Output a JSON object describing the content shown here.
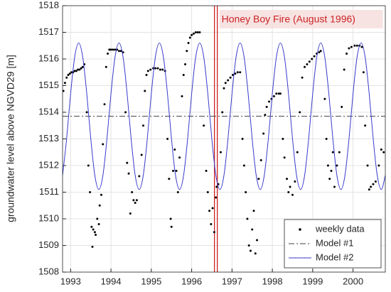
{
  "chart_data": {
    "type": "line",
    "ylabel": "groundwater level above NGVD29 [m]",
    "xlim": [
      1992.8,
      2000.8
    ],
    "xticks": [
      1993,
      1994,
      1995,
      1996,
      1997,
      1998,
      1999,
      2000
    ],
    "ylim": [
      1508,
      1518
    ],
    "yticks": [
      1508,
      1509,
      1510,
      1511,
      1512,
      1513,
      1514,
      1515,
      1516,
      1517,
      1518
    ],
    "grid": true,
    "legend": "southeast",
    "annotations": [
      {
        "text": "Honey Boy Fire (August 1996)",
        "x": 1996.6,
        "color": "#cc2222"
      }
    ],
    "series": [
      {
        "name": "weekly data",
        "marker": "dot",
        "color": "#000000",
        "x": [
          1992.82,
          1992.86,
          1992.9,
          1992.94,
          1992.98,
          1993.02,
          1993.06,
          1993.1,
          1993.14,
          1993.18,
          1993.22,
          1993.26,
          1993.3,
          1993.34,
          1993.4,
          1993.44,
          1993.48,
          1993.52,
          1993.54,
          1993.56,
          1993.6,
          1993.62,
          1993.66,
          1993.7,
          1993.72,
          1993.76,
          1993.8,
          1993.84,
          1993.88,
          1993.92,
          1993.96,
          1994.0,
          1994.05,
          1994.1,
          1994.15,
          1994.2,
          1994.25,
          1994.3,
          1994.36,
          1994.4,
          1994.44,
          1994.48,
          1994.52,
          1994.56,
          1994.6,
          1994.64,
          1994.7,
          1994.76,
          1994.8,
          1994.84,
          1994.88,
          1994.92,
          1994.98,
          1995.05,
          1995.1,
          1995.16,
          1995.22,
          1995.28,
          1995.34,
          1995.4,
          1995.44,
          1995.48,
          1995.5,
          1995.54,
          1995.58,
          1995.62,
          1995.66,
          1995.7,
          1995.76,
          1995.8,
          1995.84,
          1995.88,
          1995.92,
          1995.96,
          1996.0,
          1996.05,
          1996.1,
          1996.15,
          1996.2,
          1996.3,
          1996.36,
          1996.4,
          1996.44,
          1996.48,
          1996.52,
          1996.56,
          1996.6,
          1996.62,
          1996.66,
          1996.72,
          1996.76,
          1996.8,
          1996.84,
          1996.9,
          1996.96,
          1997.02,
          1997.08,
          1997.14,
          1997.2,
          1997.26,
          1997.3,
          1997.34,
          1997.38,
          1997.42,
          1997.46,
          1997.5,
          1997.54,
          1997.58,
          1997.62,
          1997.66,
          1997.72,
          1997.78,
          1997.82,
          1997.86,
          1997.92,
          1997.98,
          1998.04,
          1998.1,
          1998.16,
          1998.2,
          1998.26,
          1998.3,
          1998.36,
          1998.4,
          1998.44,
          1998.5,
          1998.56,
          1998.62,
          1998.68,
          1998.74,
          1998.8,
          1998.86,
          1998.92,
          1998.98,
          1999.04,
          1999.1,
          1999.16,
          1999.2,
          1999.3,
          1999.34,
          1999.38,
          1999.42,
          1999.46,
          1999.5,
          1999.54,
          1999.6,
          1999.66,
          1999.72,
          1999.78,
          1999.84,
          1999.9,
          1999.96,
          2000.04,
          2000.1,
          2000.16,
          2000.22,
          2000.26,
          2000.3,
          2000.36,
          2000.4,
          2000.44,
          2000.5,
          2000.56,
          2000.64,
          2000.7,
          2000.76
        ],
        "values": [
          1514.8,
          1515.1,
          1515.3,
          1515.4,
          1515.45,
          1515.5,
          1515.5,
          1515.55,
          1515.55,
          1515.6,
          1515.6,
          1515.65,
          1515.7,
          1515.8,
          1514.0,
          1512.0,
          1511.0,
          1509.7,
          1508.95,
          1509.6,
          1509.5,
          1509.4,
          1510.0,
          1509.8,
          1510.5,
          1510.9,
          1512.8,
          1514.3,
          1515.7,
          1516.2,
          1516.35,
          1516.35,
          1516.35,
          1516.35,
          1516.35,
          1516.3,
          1516.3,
          1516.25,
          1514.0,
          1512.1,
          1511.7,
          1510.2,
          1511.0,
          1510.7,
          1510.6,
          1510.7,
          1511.6,
          1512.4,
          1513.5,
          1514.8,
          1515.4,
          1515.55,
          1515.6,
          1515.65,
          1515.65,
          1515.65,
          1515.6,
          1515.6,
          1515.55,
          1513.0,
          1511.5,
          1510.0,
          1509.7,
          1511.8,
          1512.6,
          1511.8,
          1511.0,
          1512.3,
          1514.6,
          1515.4,
          1515.8,
          1516.3,
          1516.6,
          1516.8,
          1516.9,
          1516.95,
          1517.0,
          1517.0,
          1517.0,
          1513.5,
          1511.8,
          1511.0,
          1510.3,
          1509.8,
          1510.4,
          1509.5,
          1510.8,
          1511.2,
          1511.3,
          1512.5,
          1514.0,
          1514.9,
          1515.1,
          1515.2,
          1515.3,
          1515.4,
          1515.45,
          1515.5,
          1515.5,
          1513.0,
          1512.0,
          1511.0,
          1510.0,
          1509.0,
          1508.8,
          1509.6,
          1510.3,
          1508.7,
          1509.2,
          1511.5,
          1512.2,
          1513.2,
          1513.9,
          1514.2,
          1514.4,
          1514.5,
          1514.6,
          1514.7,
          1514.7,
          1514.7,
          1513.0,
          1512.3,
          1511.5,
          1511.0,
          1511.2,
          1510.9,
          1511.4,
          1512.5,
          1514.0,
          1515.3,
          1515.7,
          1515.8,
          1515.9,
          1516.0,
          1516.1,
          1516.2,
          1516.25,
          1516.3,
          1514.5,
          1513.0,
          1512.0,
          1511.5,
          1511.8,
          1512.5,
          1511.2,
          1512.0,
          1512.5,
          1514.2,
          1515.6,
          1516.2,
          1516.4,
          1516.45,
          1516.5,
          1516.5,
          1516.5,
          1516.45,
          1515.5,
          1513.5,
          1512.0,
          1511.1,
          1511.2,
          1511.3,
          1511.4,
          1512.0,
          1512.6,
          1512.5
        ]
      },
      {
        "name": "Model #1",
        "line_style": "dashdot",
        "color": "#404040",
        "x": [
          1992.8,
          2000.8
        ],
        "values": [
          1513.85,
          1513.85
        ]
      },
      {
        "name": "Model #2",
        "line_style": "solid",
        "color": "#3a3acc",
        "x": [
          1992.8,
          1992.9,
          1993.0,
          1993.1,
          1993.2,
          1993.3,
          1993.4,
          1993.5,
          1993.6,
          1993.7,
          1993.8,
          1993.9,
          1994.0,
          1994.1,
          1994.2,
          1994.3,
          1994.4,
          1994.5,
          1994.6,
          1994.7,
          1994.8,
          1994.9,
          1995.0,
          1995.1,
          1995.2,
          1995.3,
          1995.4,
          1995.5,
          1995.6,
          1995.7,
          1995.8,
          1995.9,
          1996.0,
          1996.1,
          1996.2,
          1996.3,
          1996.4,
          1996.5,
          1996.6,
          1996.7,
          1996.8,
          1996.9,
          1997.0,
          1997.1,
          1997.2,
          1997.3,
          1997.4,
          1997.5,
          1997.6,
          1997.7,
          1997.8,
          1997.9,
          1998.0,
          1998.1,
          1998.2,
          1998.3,
          1998.4,
          1998.5,
          1998.6,
          1998.7,
          1998.8,
          1998.9,
          1999.0,
          1999.1,
          1999.2,
          1999.3,
          1999.4,
          1999.5,
          1999.6,
          1999.7,
          1999.8,
          1999.9,
          2000.0,
          2000.1,
          2000.2,
          2000.3,
          2000.4,
          2000.5,
          2000.6,
          2000.7,
          2000.8
        ],
        "values": [
          1511.63,
          1513.0,
          1514.7,
          1516.07,
          1516.6,
          1516.07,
          1514.7,
          1513.0,
          1511.63,
          1511.1,
          1511.63,
          1513.0,
          1514.7,
          1516.07,
          1516.6,
          1516.07,
          1514.7,
          1513.0,
          1511.63,
          1511.1,
          1511.63,
          1513.0,
          1514.7,
          1516.07,
          1516.6,
          1516.07,
          1514.7,
          1513.0,
          1511.63,
          1511.1,
          1511.63,
          1513.0,
          1514.7,
          1516.07,
          1516.6,
          1516.07,
          1514.7,
          1513.0,
          1511.63,
          1511.1,
          1511.63,
          1513.0,
          1514.7,
          1516.07,
          1516.6,
          1516.07,
          1514.7,
          1513.0,
          1511.63,
          1511.1,
          1511.63,
          1513.0,
          1514.7,
          1516.07,
          1516.6,
          1516.07,
          1514.7,
          1513.0,
          1511.63,
          1511.1,
          1511.63,
          1513.0,
          1514.7,
          1516.07,
          1516.6,
          1516.07,
          1514.7,
          1513.0,
          1511.63,
          1511.1,
          1511.63,
          1513.0,
          1514.7,
          1516.07,
          1516.6,
          1516.07,
          1514.7,
          1513.0,
          1511.63,
          1511.1,
          1511.63
        ]
      }
    ]
  }
}
